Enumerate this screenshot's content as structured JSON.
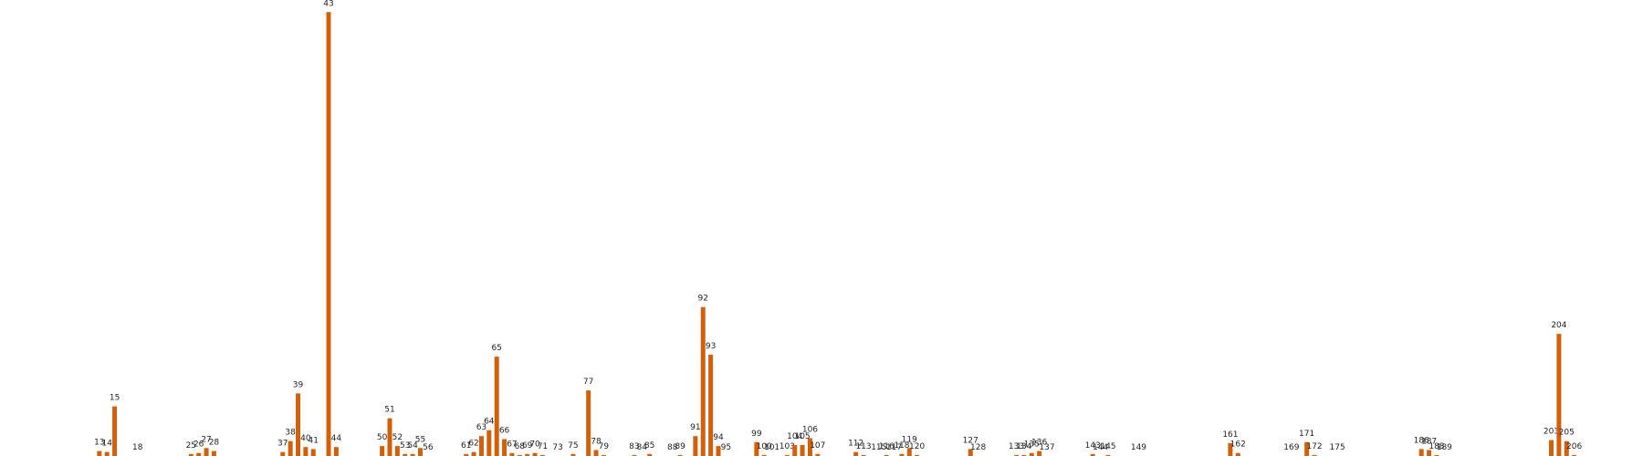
{
  "chart_data": {
    "type": "bar",
    "title": "",
    "xlabel": "",
    "ylabel": "",
    "ylim": [
      0,
      45
    ],
    "grid": false,
    "legend": "none",
    "bar_color": "#d35f0b",
    "x_domain": [
      0,
      215
    ],
    "categories": [
      13,
      14,
      15,
      18,
      25,
      26,
      27,
      28,
      37,
      38,
      39,
      40,
      41,
      43,
      44,
      50,
      51,
      52,
      53,
      54,
      55,
      56,
      61,
      62,
      63,
      64,
      65,
      66,
      67,
      68,
      69,
      70,
      71,
      73,
      75,
      77,
      78,
      79,
      83,
      84,
      85,
      88,
      89,
      91,
      92,
      93,
      94,
      95,
      99,
      100,
      101,
      103,
      104,
      105,
      106,
      107,
      112,
      113,
      115,
      116,
      117,
      118,
      119,
      120,
      127,
      128,
      133,
      134,
      135,
      136,
      137,
      143,
      144,
      145,
      149,
      161,
      162,
      169,
      171,
      172,
      175,
      186,
      187,
      188,
      189,
      203,
      204,
      205,
      206
    ],
    "values": [
      0.5,
      0.4,
      5.0,
      0,
      0.2,
      0.3,
      0.8,
      0.5,
      0.4,
      1.5,
      6.3,
      0.9,
      0.7,
      44.7,
      0.9,
      1.0,
      3.8,
      1.0,
      0.2,
      0.2,
      0.8,
      0,
      0.2,
      0.4,
      2.0,
      2.6,
      10.0,
      1.7,
      0.3,
      0.1,
      0.2,
      0.3,
      0.1,
      0,
      0.2,
      6.6,
      0.6,
      0.1,
      0.1,
      0,
      0.2,
      0,
      0.1,
      2.0,
      15.0,
      10.2,
      1.0,
      0,
      1.4,
      0.1,
      0,
      0.1,
      1.1,
      1.1,
      1.8,
      0.2,
      0.4,
      0.1,
      0,
      0.1,
      0,
      0.2,
      0.8,
      0.1,
      0.7,
      0,
      0.1,
      0.1,
      0.3,
      0.5,
      0,
      0.2,
      0,
      0.1,
      0,
      1.3,
      0.3,
      0,
      1.4,
      0.1,
      0,
      0.7,
      0.6,
      0.1,
      0,
      1.6,
      12.3,
      1.5,
      0.1
    ]
  }
}
